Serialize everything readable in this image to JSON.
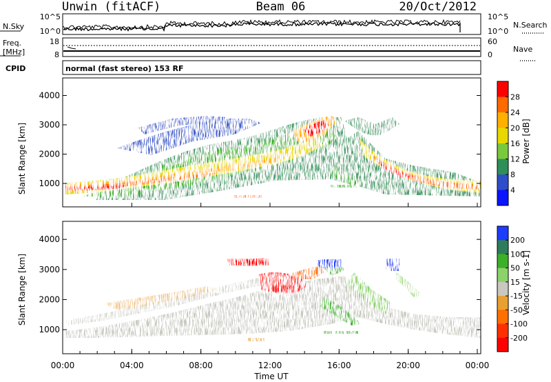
{
  "header": {
    "radar": "Unwin (fitACF)",
    "beam": "Beam 06",
    "date": "20/Oct/2012"
  },
  "strips": {
    "nsky": {
      "label": "N.Sky",
      "ticks_left": [
        "10^5",
        "10^0"
      ],
      "ticks_right": [
        "10^5",
        "10^0"
      ],
      "right_label": "N.Search"
    },
    "freq": {
      "label_line1": "Freq.",
      "label_line2": "[MHz]",
      "ticks_left": [
        "18",
        "8"
      ],
      "ticks_right": [
        "60",
        "0"
      ],
      "right_label": "Nave"
    },
    "cpid": {
      "label": "CPID",
      "text": "normal (fast stereo) 153 RF"
    }
  },
  "chart_data": [
    {
      "type": "heatmap",
      "title": "",
      "xlabel": "",
      "ylabel": "Slant Range [km]",
      "ylim": [
        200,
        4600
      ],
      "yticks": [
        "1000",
        "2000",
        "3000",
        "4000"
      ],
      "colorbar_label": "Power [dB]",
      "colorbar_ticks": [
        "28",
        "24",
        "20",
        "16",
        "12",
        "8",
        "4"
      ],
      "colorbar_colors": [
        "#ff0000",
        "#ff6a00",
        "#ffb000",
        "#e8d800",
        "#7ac83c",
        "#2f8f58",
        "#2f4fc8",
        "#0a14ff"
      ]
    },
    {
      "type": "heatmap",
      "title": "",
      "xlabel": "Time UT",
      "ylabel": "Slant Range [km]",
      "ylim": [
        200,
        4600
      ],
      "yticks": [
        "1000",
        "2000",
        "3000",
        "4000"
      ],
      "xticks": [
        "00:00",
        "04:00",
        "08:00",
        "12:00",
        "16:00",
        "20:00",
        "00:00"
      ],
      "colorbar_label": "Velocity [m s-1]",
      "colorbar_ticks": [
        "200",
        "100",
        "50",
        "15",
        "-15",
        "-50",
        "-100",
        "-200"
      ],
      "colorbar_colors": [
        "#1c3cff",
        "#2e7d5a",
        "#3cb028",
        "#8cd26a",
        "#c8c8c0",
        "#e8a030",
        "#ff7000",
        "#ff3000",
        "#ff0000"
      ]
    }
  ]
}
